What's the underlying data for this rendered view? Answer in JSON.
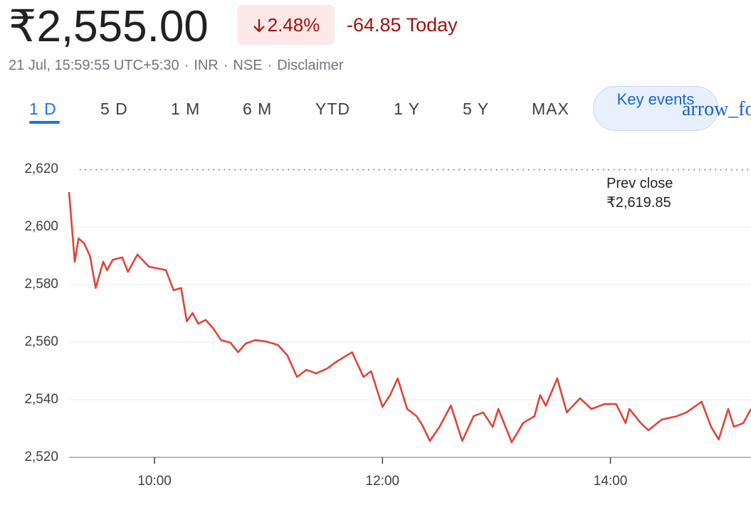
{
  "header": {
    "price": "₹2,555.00",
    "change_percent": "2.48%",
    "change_today": "-64.85 Today",
    "meta": [
      "21 Jul, 15:59:55 UTC+5:30",
      "INR",
      "NSE",
      "Disclaimer"
    ]
  },
  "tabs": [
    "1 D",
    "5 D",
    "1 M",
    "6 M",
    "YTD",
    "1 Y",
    "5 Y",
    "MAX"
  ],
  "key_events": "Key events",
  "arrow_icon": "arrow_forward",
  "chart_data": {
    "type": "line",
    "x": [
      555,
      558,
      560,
      563,
      566,
      569,
      573,
      575,
      578,
      583,
      586,
      591,
      597,
      603,
      606,
      610,
      614,
      617,
      620,
      623,
      627,
      631,
      635,
      640,
      644,
      648,
      653,
      659,
      665,
      670,
      675,
      680,
      685,
      691,
      696,
      704,
      710,
      714,
      720,
      724,
      728,
      733,
      738,
      741,
      745,
      750,
      756,
      762,
      768,
      773,
      778,
      781,
      788,
      794,
      800,
      803,
      806,
      812,
      817,
      824,
      830,
      837,
      843,
      848,
      850,
      856,
      860,
      867,
      875,
      880,
      888,
      893,
      897,
      902,
      905,
      910,
      914
    ],
    "series": [
      {
        "name": "Price",
        "color": "#e0443a",
        "values": [
          2612.1,
          2587.9,
          2596,
          2594.3,
          2589.9,
          2578.8,
          2587.9,
          2585,
          2588.6,
          2589.4,
          2584.4,
          2590.4,
          2586.2,
          2585.4,
          2585,
          2578,
          2578.8,
          2567.2,
          2570.1,
          2566.4,
          2567.7,
          2564.7,
          2560.7,
          2559.8,
          2556.5,
          2559.5,
          2560.7,
          2560.2,
          2559,
          2555.3,
          2547.9,
          2550.4,
          2549.1,
          2550.9,
          2553.3,
          2556.5,
          2547.9,
          2549.9,
          2537.5,
          2541.6,
          2547.4,
          2536.8,
          2534.3,
          2531.1,
          2525.7,
          2530.6,
          2538,
          2525.7,
          2534.3,
          2535.6,
          2530.6,
          2536.8,
          2525.2,
          2531.9,
          2534.3,
          2541.6,
          2537.9,
          2547.4,
          2535.6,
          2540.5,
          2536.8,
          2538.5,
          2538.5,
          2531.9,
          2536.8,
          2531.9,
          2529.4,
          2533.1,
          2534.3,
          2535.6,
          2539.3,
          2530.6,
          2526.2,
          2536.8,
          2530.6,
          2531.9,
          2536.8
        ]
      }
    ],
    "xlim": [
      555,
      914
    ],
    "xticks": [
      {
        "value": 600,
        "label": "10:00"
      },
      {
        "value": 720,
        "label": "12:00"
      },
      {
        "value": 840,
        "label": "14:00"
      }
    ],
    "ylim": [
      2520,
      2620
    ],
    "yticks": [
      {
        "value": 2520,
        "label": "2,520"
      },
      {
        "value": 2540,
        "label": "2,540"
      },
      {
        "value": 2560,
        "label": "2,560"
      },
      {
        "value": 2580,
        "label": "2,580"
      },
      {
        "value": 2600,
        "label": "2,600"
      },
      {
        "value": 2620,
        "label": "2,620"
      }
    ],
    "grid": true,
    "prev_close": {
      "label": "Prev close",
      "value": 2619.85,
      "value_label": "₹2,619.85"
    }
  }
}
